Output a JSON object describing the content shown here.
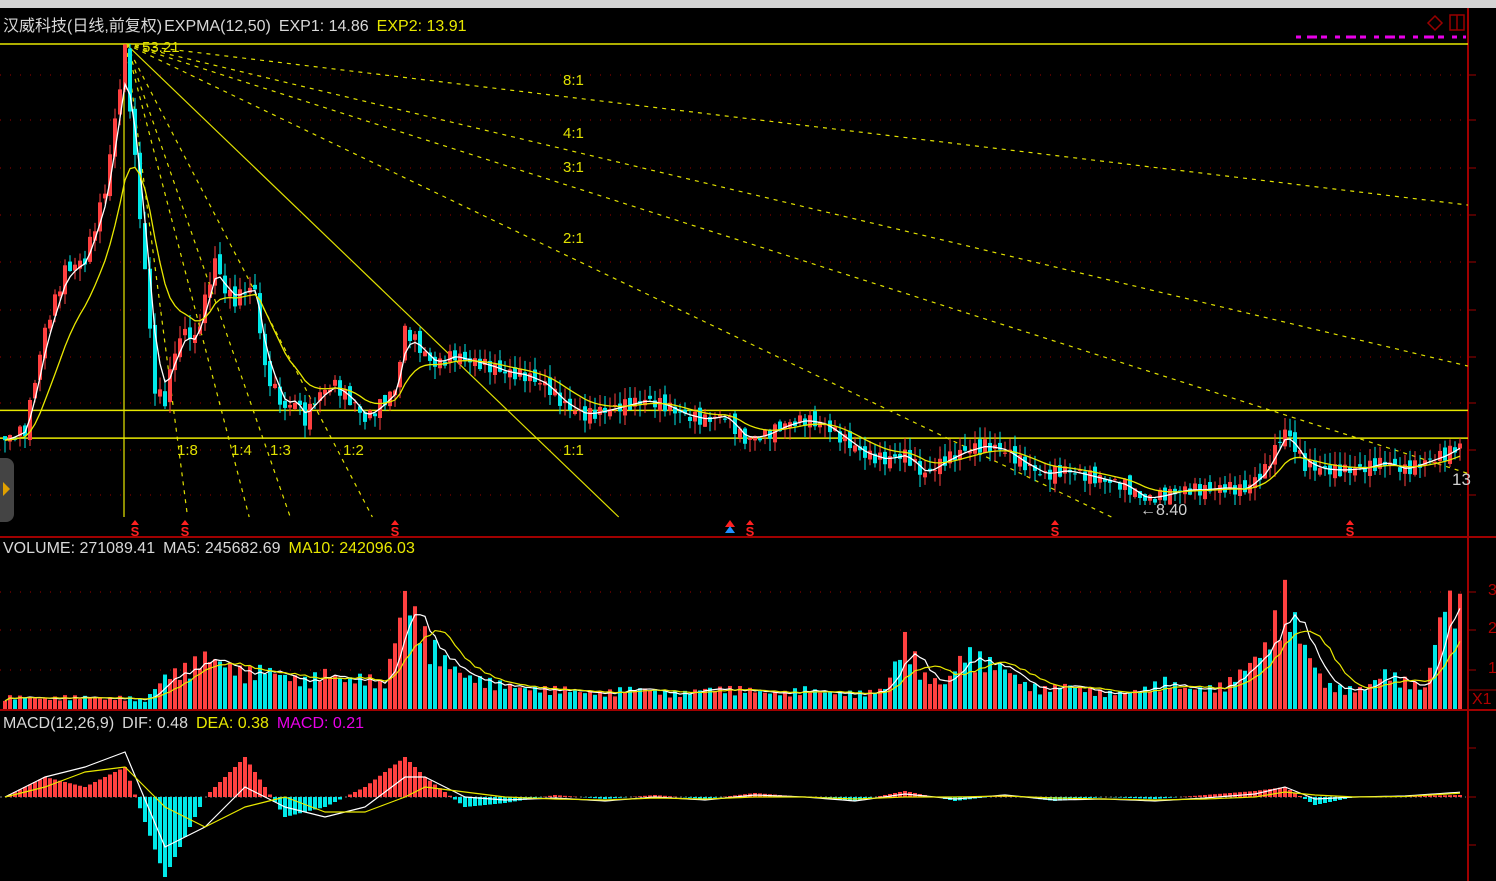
{
  "main_header": {
    "stock_name": "汉威科技(日线,前复权)",
    "indicator": "EXPMA(12,50)",
    "exp1": "EXP1: 14.86",
    "exp2": "EXP2: 13.91"
  },
  "volume_header": {
    "volume": "VOLUME: 271089.41",
    "ma5": "MA5: 245682.69",
    "ma10": "MA10: 242096.03"
  },
  "macd_header": {
    "indicator": "MACD(12,26,9)",
    "dif": "DIF: 0.48",
    "dea": "DEA: 0.38",
    "macd": "MACD: 0.21"
  },
  "annotations": {
    "high": "53.21",
    "low": "8.40",
    "price_axis_label": "13",
    "volume_axis_labels": [
      "3",
      "2",
      "1"
    ],
    "volume_axis_unit": "X1",
    "gann_fan_labels": [
      "8:1",
      "4:1",
      "3:1",
      "2:1",
      "1:1",
      "1:2",
      "1:3",
      "1:4",
      "1:8"
    ],
    "signal_marker": "S"
  },
  "colors": {
    "background": "#000000",
    "up": "#ff4040",
    "down": "#00e8e8",
    "exp1": "#ffffff",
    "exp2": "#e8e800",
    "gann": "#e0e000",
    "grid": "#a00000",
    "macd": "#e800e8"
  },
  "chart_data": [
    {
      "type": "candlestick",
      "title": "汉威科技(日线,前复权)",
      "scale": "linear",
      "ylim": [
        8.4,
        53.21
      ],
      "high": 53.21,
      "low": 8.4,
      "horizontal_lines": [
        53.21,
        17.6,
        14.9
      ],
      "close_points": [
        [
          0,
          14.7
        ],
        [
          4,
          15.7
        ],
        [
          8,
          25.4
        ],
        [
          12,
          31.2
        ],
        [
          16,
          32.2
        ],
        [
          20,
          39.0
        ],
        [
          22,
          45.8
        ],
        [
          24,
          52.6
        ],
        [
          26,
          41.9
        ],
        [
          28,
          31.2
        ],
        [
          30,
          19.6
        ],
        [
          32,
          18.6
        ],
        [
          34,
          23.5
        ],
        [
          36,
          25.4
        ],
        [
          38,
          24.4
        ],
        [
          40,
          28.3
        ],
        [
          42,
          32.2
        ],
        [
          44,
          29.3
        ],
        [
          46,
          28.3
        ],
        [
          48,
          29.3
        ],
        [
          50,
          29.3
        ],
        [
          52,
          21.5
        ],
        [
          54,
          19.6
        ],
        [
          56,
          17.6
        ],
        [
          58,
          18.6
        ],
        [
          60,
          16.7
        ],
        [
          62,
          18.6
        ],
        [
          64,
          19.6
        ],
        [
          66,
          20.1
        ],
        [
          68,
          19.1
        ],
        [
          70,
          18.1
        ],
        [
          72,
          16.7
        ],
        [
          74,
          17.6
        ],
        [
          76,
          18.6
        ],
        [
          78,
          19.6
        ],
        [
          80,
          25.4
        ],
        [
          82,
          24.4
        ],
        [
          84,
          23.0
        ],
        [
          86,
          22.0
        ],
        [
          88,
          22.5
        ],
        [
          90,
          23.0
        ],
        [
          92,
          22.5
        ],
        [
          94,
          22.3
        ],
        [
          96,
          22.0
        ],
        [
          98,
          21.7
        ],
        [
          100,
          21.3
        ],
        [
          104,
          21.0
        ],
        [
          108,
          20.1
        ],
        [
          112,
          18.1
        ],
        [
          116,
          17.1
        ],
        [
          120,
          17.6
        ],
        [
          124,
          18.1
        ],
        [
          128,
          18.6
        ],
        [
          132,
          18.1
        ],
        [
          136,
          17.1
        ],
        [
          140,
          16.7
        ],
        [
          144,
          17.1
        ],
        [
          148,
          14.7
        ],
        [
          152,
          15.2
        ],
        [
          156,
          16.2
        ],
        [
          160,
          16.7
        ],
        [
          164,
          16.2
        ],
        [
          168,
          14.7
        ],
        [
          172,
          13.3
        ],
        [
          176,
          12.8
        ],
        [
          180,
          13.3
        ],
        [
          184,
          11.3
        ],
        [
          188,
          12.8
        ],
        [
          192,
          13.7
        ],
        [
          196,
          14.2
        ],
        [
          200,
          13.7
        ],
        [
          204,
          12.3
        ],
        [
          208,
          11.3
        ],
        [
          212,
          11.8
        ],
        [
          216,
          11.3
        ],
        [
          220,
          10.8
        ],
        [
          224,
          10.3
        ],
        [
          228,
          8.9
        ],
        [
          232,
          9.4
        ],
        [
          236,
          9.9
        ],
        [
          240,
          9.9
        ],
        [
          244,
          10.1
        ],
        [
          248,
          9.9
        ],
        [
          252,
          11.8
        ],
        [
          256,
          15.7
        ],
        [
          260,
          12.3
        ],
        [
          264,
          11.8
        ],
        [
          268,
          11.8
        ],
        [
          272,
          12.0
        ],
        [
          276,
          12.6
        ],
        [
          280,
          11.8
        ],
        [
          284,
          12.6
        ],
        [
          288,
          13.3
        ],
        [
          291,
          14.2
        ]
      ],
      "high_index": 24,
      "low_index": 227,
      "gann_fan": {
        "origin_index": 24,
        "origin_price": 53.21,
        "ratios": [
          "8:1",
          "4:1",
          "3:1",
          "2:1",
          "1:1",
          "1:2",
          "1:3",
          "1:4",
          "1:8"
        ]
      },
      "sell_signal_indices": [
        26,
        36,
        78,
        149,
        210,
        269
      ],
      "buy_signal_indices": [
        145
      ],
      "series": [
        {
          "name": "EXP1",
          "period": 12
        },
        {
          "name": "EXP2",
          "period": 50
        }
      ]
    },
    {
      "type": "bar",
      "title": "VOLUME",
      "unit": "X1",
      "yticks": [
        1,
        2,
        3
      ],
      "volume_points": [
        [
          0,
          0.3
        ],
        [
          4,
          0.3
        ],
        [
          8,
          0.25
        ],
        [
          12,
          0.3
        ],
        [
          16,
          0.3
        ],
        [
          20,
          0.25
        ],
        [
          24,
          0.3
        ],
        [
          28,
          0.2
        ],
        [
          32,
          0.8
        ],
        [
          36,
          1.0
        ],
        [
          40,
          1.3
        ],
        [
          44,
          1.1
        ],
        [
          48,
          0.9
        ],
        [
          52,
          1.0
        ],
        [
          56,
          0.8
        ],
        [
          60,
          0.7
        ],
        [
          64,
          0.9
        ],
        [
          68,
          0.7
        ],
        [
          72,
          0.8
        ],
        [
          76,
          0.6
        ],
        [
          80,
          2.8
        ],
        [
          84,
          1.8
        ],
        [
          88,
          1.2
        ],
        [
          92,
          0.8
        ],
        [
          96,
          0.7
        ],
        [
          100,
          0.6
        ],
        [
          104,
          0.5
        ],
        [
          108,
          0.5
        ],
        [
          112,
          0.5
        ],
        [
          116,
          0.4
        ],
        [
          120,
          0.4
        ],
        [
          124,
          0.5
        ],
        [
          128,
          0.5
        ],
        [
          132,
          0.4
        ],
        [
          136,
          0.4
        ],
        [
          140,
          0.5
        ],
        [
          144,
          0.5
        ],
        [
          148,
          0.5
        ],
        [
          152,
          0.4
        ],
        [
          156,
          0.4
        ],
        [
          160,
          0.5
        ],
        [
          164,
          0.4
        ],
        [
          168,
          0.4
        ],
        [
          172,
          0.4
        ],
        [
          176,
          0.5
        ],
        [
          180,
          1.7
        ],
        [
          184,
          0.8
        ],
        [
          188,
          0.6
        ],
        [
          192,
          1.4
        ],
        [
          196,
          1.2
        ],
        [
          200,
          1.0
        ],
        [
          204,
          0.6
        ],
        [
          208,
          0.5
        ],
        [
          212,
          0.6
        ],
        [
          216,
          0.5
        ],
        [
          220,
          0.4
        ],
        [
          224,
          0.4
        ],
        [
          228,
          0.5
        ],
        [
          232,
          0.7
        ],
        [
          236,
          0.5
        ],
        [
          240,
          0.5
        ],
        [
          244,
          0.6
        ],
        [
          248,
          1.0
        ],
        [
          252,
          1.5
        ],
        [
          256,
          2.8
        ],
        [
          260,
          1.5
        ],
        [
          264,
          0.6
        ],
        [
          268,
          0.5
        ],
        [
          272,
          0.5
        ],
        [
          276,
          0.9
        ],
        [
          280,
          0.7
        ],
        [
          284,
          0.5
        ],
        [
          288,
          2.7
        ],
        [
          291,
          2.5
        ]
      ],
      "series": [
        {
          "name": "VOLUME"
        },
        {
          "name": "MA5"
        },
        {
          "name": "MA10"
        }
      ]
    },
    {
      "type": "line",
      "title": "MACD(12,26,9)",
      "dif_dea_points": [
        [
          0,
          0,
          0
        ],
        [
          8,
          2,
          1
        ],
        [
          16,
          3,
          2.5
        ],
        [
          24,
          4.5,
          3
        ],
        [
          32,
          -5,
          -1
        ],
        [
          40,
          -3,
          -3
        ],
        [
          48,
          1,
          -1
        ],
        [
          56,
          -1,
          0
        ],
        [
          64,
          -2,
          -1.5
        ],
        [
          72,
          -1,
          -1.5
        ],
        [
          80,
          2,
          0
        ],
        [
          84,
          2,
          1
        ],
        [
          92,
          0,
          0.5
        ],
        [
          100,
          -0.3,
          0
        ],
        [
          110,
          -0.1,
          -0.2
        ],
        [
          120,
          -0.4,
          -0.3
        ],
        [
          130,
          0,
          -0.1
        ],
        [
          140,
          -0.3,
          -0.2
        ],
        [
          150,
          0.2,
          0
        ],
        [
          160,
          0,
          0
        ],
        [
          170,
          -0.4,
          -0.2
        ],
        [
          180,
          0.3,
          0
        ],
        [
          190,
          -0.2,
          0
        ],
        [
          200,
          0.2,
          0.1
        ],
        [
          210,
          -0.3,
          -0.1
        ],
        [
          220,
          -0.2,
          -0.2
        ],
        [
          230,
          -0.4,
          -0.3
        ],
        [
          240,
          -0.1,
          -0.2
        ],
        [
          250,
          0.3,
          0
        ],
        [
          256,
          1,
          0.5
        ],
        [
          262,
          -0.2,
          0.2
        ],
        [
          270,
          0,
          0
        ],
        [
          280,
          0.1,
          0.05
        ],
        [
          291,
          0.48,
          0.38
        ]
      ],
      "series": [
        {
          "name": "DIF"
        },
        {
          "name": "DEA"
        },
        {
          "name": "MACD"
        }
      ]
    }
  ]
}
